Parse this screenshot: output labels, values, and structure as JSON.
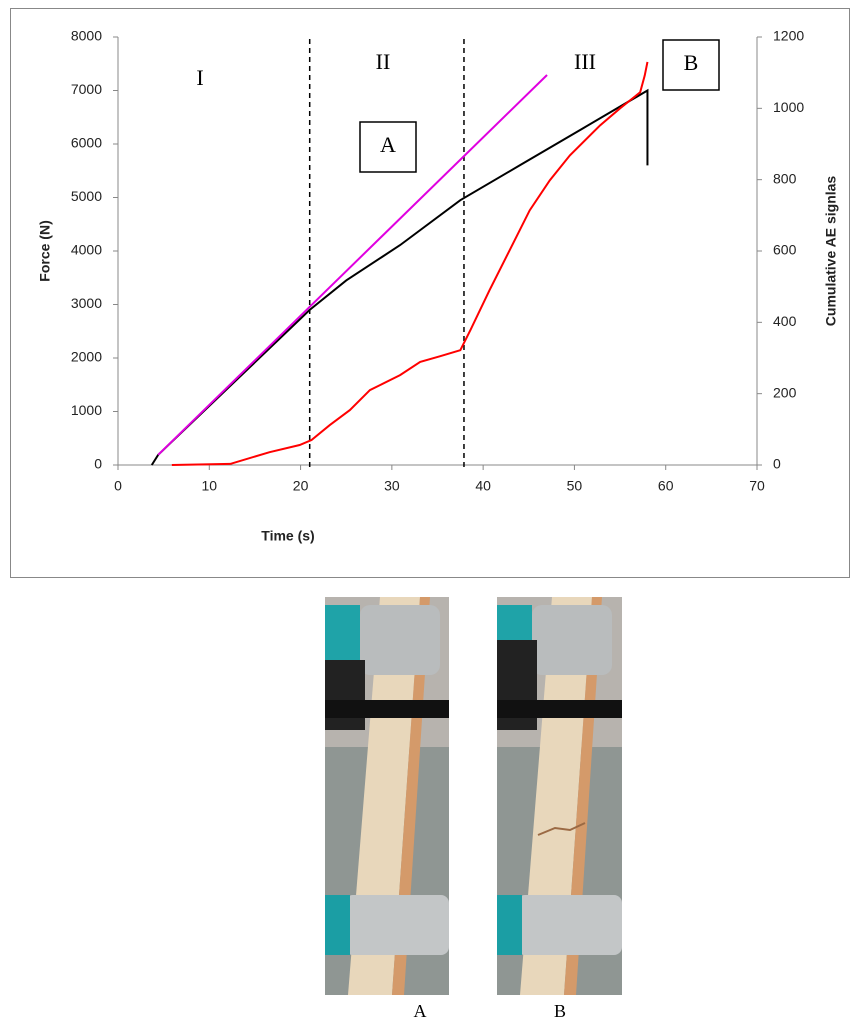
{
  "chart_data": {
    "type": "line",
    "xlabel": "Time (s)",
    "ylabel": "Force (N)",
    "y2label": "Cumulative AE signlas",
    "xlim": [
      0,
      70
    ],
    "xticks": [
      0,
      10,
      20,
      30,
      40,
      50,
      60,
      70
    ],
    "ylim": [
      0,
      8000
    ],
    "yticks": [
      0,
      1000,
      2000,
      3000,
      4000,
      5000,
      6000,
      7000,
      8000
    ],
    "y2lim": [
      0,
      1200
    ],
    "y2ticks": [
      0,
      200,
      400,
      600,
      800,
      1000,
      1200
    ],
    "grid": false,
    "vlines": [
      21,
      37.9
    ],
    "annotations": [
      "I",
      "II",
      "III",
      "A",
      "B"
    ],
    "series": [
      {
        "color": "#000000",
        "x": [
          3.7,
          4.4,
          21,
          25,
          30.9,
          37.5,
          44,
          51,
          58,
          58
        ],
        "values": [
          0,
          190,
          2900,
          3450,
          4110,
          4950,
          5600,
          6300,
          7000,
          5600
        ]
      },
      {
        "color": "#e000e0",
        "x": [
          4.4,
          47
        ],
        "values": [
          190,
          7290
        ]
      },
      {
        "color": "#ff0000",
        "axis": "y2",
        "x": [
          5.9,
          12.3,
          16.6,
          19.9,
          21.2,
          23.2,
          25.4,
          27.6,
          28.7,
          30.9,
          33.1,
          35.3,
          37.5,
          38.6,
          40.7,
          42.9,
          45.1,
          47.3,
          49.5,
          52.8,
          55,
          57.2,
          57.7,
          58
        ],
        "values": [
          0,
          3,
          36,
          56,
          70,
          112,
          154,
          210,
          224,
          252,
          289,
          305,
          322,
          378,
          490,
          602,
          714,
          798,
          868,
          952,
          1000,
          1045,
          1092,
          1130
        ]
      }
    ]
  },
  "photos": {
    "captions": [
      "A",
      "B"
    ]
  }
}
